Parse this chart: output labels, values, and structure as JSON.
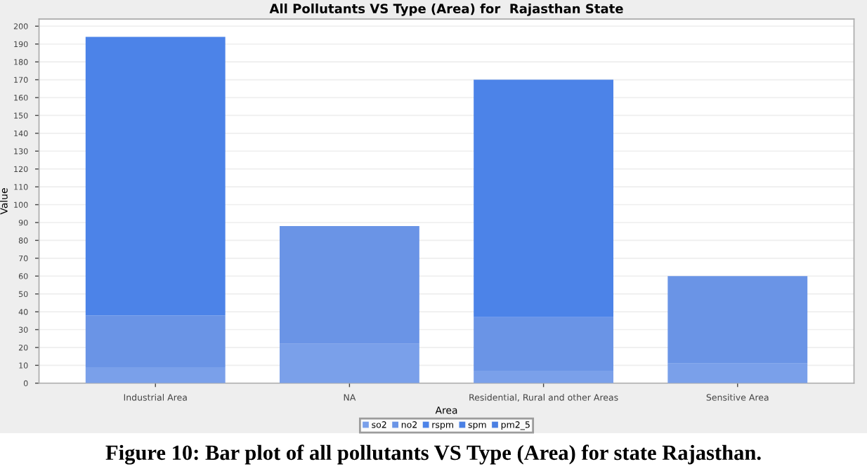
{
  "chart_data": {
    "type": "bar",
    "title": "All Pollutants VS Type (Area) for  Rajasthan State",
    "xlabel": "Area",
    "ylabel": "Value",
    "categories": [
      "Industrial Area",
      "NA",
      "Residential, Rural and other Areas",
      "Sensitive Area"
    ],
    "stacked": true,
    "series": [
      {
        "name": "so2",
        "color": "#7aa0ea",
        "values": [
          9,
          22,
          7,
          11
        ]
      },
      {
        "name": "no2",
        "color": "#6a94e6",
        "values": [
          29,
          66,
          30,
          49
        ]
      },
      {
        "name": "rspm",
        "color": "#4c83e8",
        "values": [
          156,
          null,
          133,
          null
        ]
      },
      {
        "name": "spm",
        "color": "#4a80e4",
        "values": [
          null,
          null,
          null,
          null
        ]
      },
      {
        "name": "pm2_5",
        "color": "#4a7fe2",
        "values": [
          null,
          null,
          null,
          null
        ]
      }
    ],
    "ylim": [
      0,
      204
    ],
    "yticks": [
      0,
      10,
      20,
      30,
      40,
      50,
      60,
      70,
      80,
      90,
      100,
      110,
      120,
      130,
      140,
      150,
      160,
      170,
      180,
      190,
      200
    ],
    "grid": "y",
    "legend": "bottom",
    "annotations": [
      "Figure 10: Bar plot of all pollutants VS Type (Area) for state Rajasthan."
    ]
  }
}
